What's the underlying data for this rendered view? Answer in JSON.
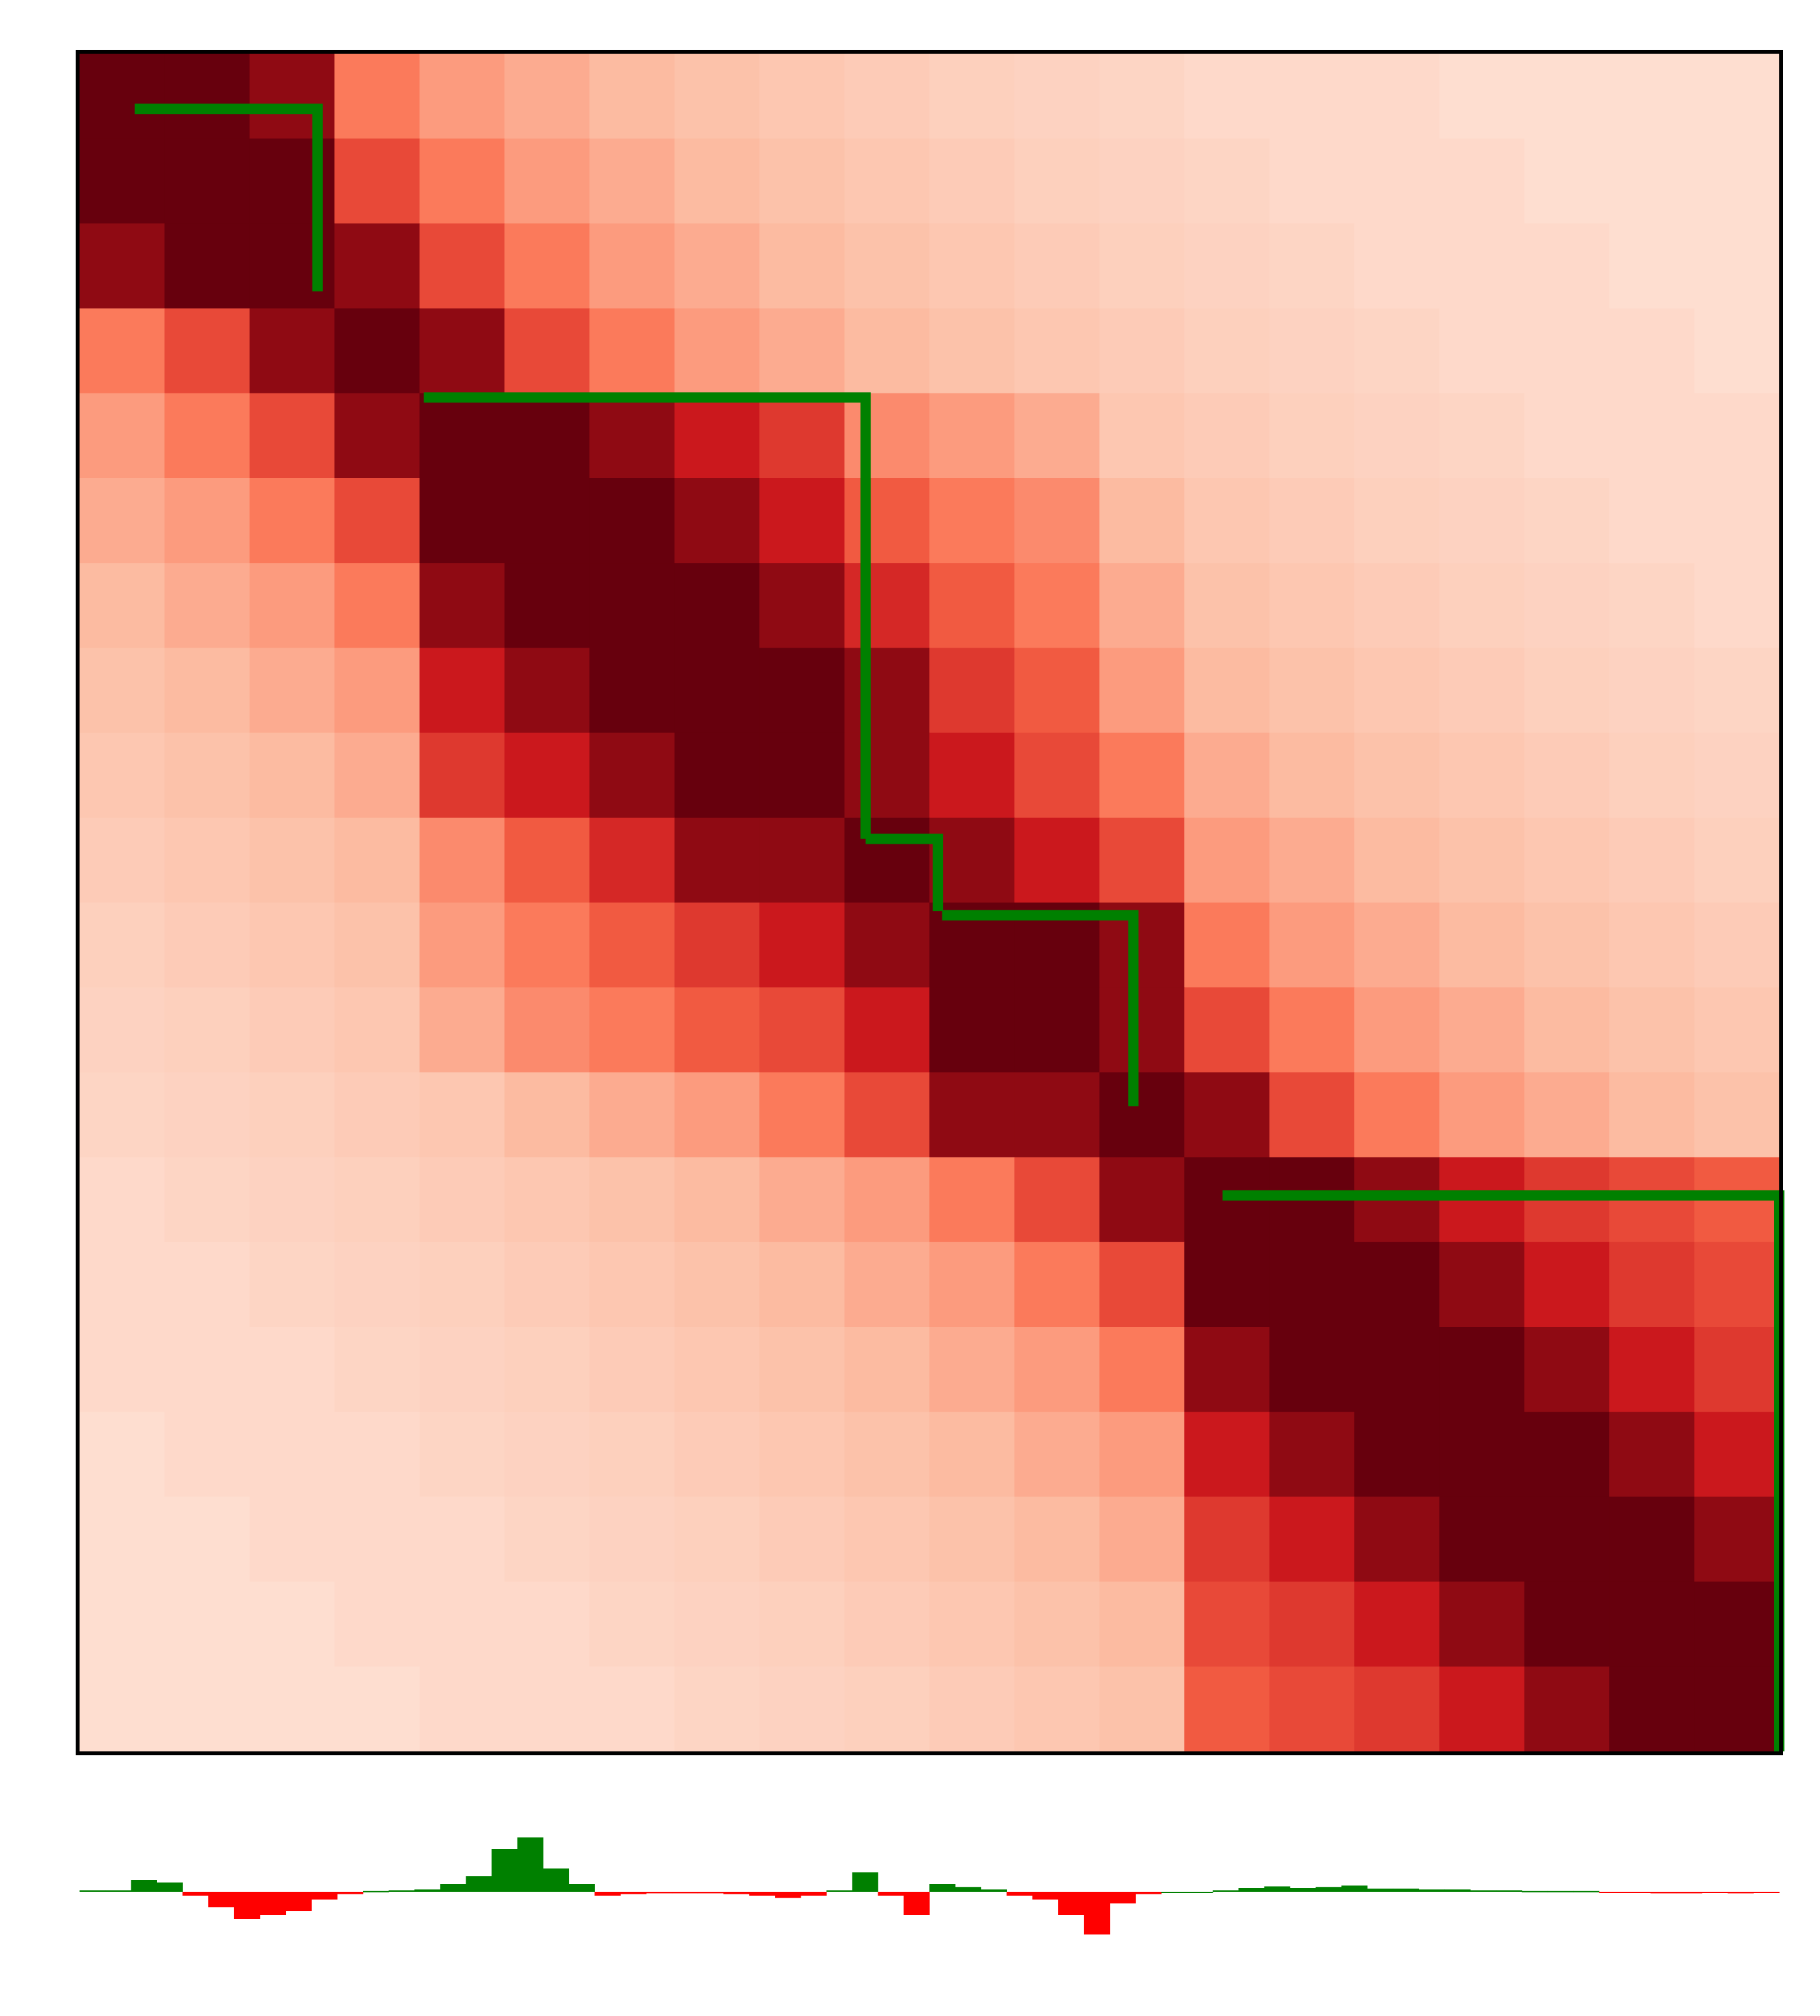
{
  "chart_data": {
    "type": "heatmap",
    "vmin": 0,
    "vmax": 1,
    "colormap": [
      "#fff5f0",
      "#fcbba1",
      "#fb6a4a",
      "#cb181d",
      "#67000d"
    ],
    "matrix": [
      [
        1,
        1,
        0.9,
        0.45,
        0.35,
        0.3,
        0.25,
        0.22,
        0.2,
        0.18,
        0.16,
        0.15,
        0.14,
        0.12,
        0.12,
        0.12,
        0.1,
        0.1,
        0.1,
        0.1
      ],
      [
        1,
        1,
        1,
        0.6,
        0.45,
        0.35,
        0.3,
        0.25,
        0.22,
        0.2,
        0.18,
        0.16,
        0.15,
        0.14,
        0.12,
        0.12,
        0.12,
        0.1,
        0.1,
        0.1
      ],
      [
        0.9,
        1,
        1,
        0.9,
        0.6,
        0.45,
        0.35,
        0.3,
        0.25,
        0.22,
        0.2,
        0.18,
        0.16,
        0.15,
        0.14,
        0.12,
        0.12,
        0.12,
        0.1,
        0.1
      ],
      [
        0.45,
        0.6,
        0.9,
        1,
        0.9,
        0.6,
        0.45,
        0.35,
        0.3,
        0.25,
        0.22,
        0.2,
        0.18,
        0.16,
        0.15,
        0.14,
        0.12,
        0.12,
        0.12,
        0.1
      ],
      [
        0.35,
        0.45,
        0.6,
        0.9,
        1,
        1,
        0.9,
        0.75,
        0.65,
        0.4,
        0.35,
        0.3,
        0.2,
        0.18,
        0.16,
        0.15,
        0.14,
        0.12,
        0.12,
        0.12
      ],
      [
        0.3,
        0.35,
        0.45,
        0.6,
        1,
        1,
        1,
        0.9,
        0.75,
        0.55,
        0.45,
        0.4,
        0.25,
        0.2,
        0.18,
        0.16,
        0.15,
        0.14,
        0.12,
        0.12
      ],
      [
        0.25,
        0.3,
        0.35,
        0.45,
        0.9,
        1,
        1,
        1,
        0.9,
        0.7,
        0.55,
        0.45,
        0.3,
        0.22,
        0.2,
        0.18,
        0.16,
        0.15,
        0.14,
        0.12
      ],
      [
        0.22,
        0.25,
        0.3,
        0.35,
        0.75,
        0.9,
        1,
        1,
        1,
        0.9,
        0.65,
        0.55,
        0.35,
        0.25,
        0.22,
        0.2,
        0.18,
        0.16,
        0.15,
        0.14
      ],
      [
        0.2,
        0.22,
        0.25,
        0.3,
        0.65,
        0.75,
        0.9,
        1,
        1,
        0.9,
        0.75,
        0.6,
        0.45,
        0.3,
        0.25,
        0.22,
        0.2,
        0.18,
        0.16,
        0.15
      ],
      [
        0.18,
        0.2,
        0.22,
        0.25,
        0.4,
        0.55,
        0.7,
        0.9,
        0.9,
        1,
        0.9,
        0.75,
        0.6,
        0.35,
        0.3,
        0.25,
        0.22,
        0.2,
        0.18,
        0.16
      ],
      [
        0.16,
        0.18,
        0.2,
        0.22,
        0.35,
        0.45,
        0.55,
        0.65,
        0.75,
        0.9,
        1,
        1,
        0.9,
        0.45,
        0.35,
        0.3,
        0.25,
        0.22,
        0.2,
        0.18
      ],
      [
        0.15,
        0.16,
        0.18,
        0.2,
        0.3,
        0.4,
        0.45,
        0.55,
        0.6,
        0.75,
        1,
        1,
        0.9,
        0.6,
        0.45,
        0.35,
        0.3,
        0.25,
        0.22,
        0.2
      ],
      [
        0.14,
        0.15,
        0.16,
        0.18,
        0.2,
        0.25,
        0.3,
        0.35,
        0.45,
        0.6,
        0.9,
        0.9,
        1,
        0.9,
        0.6,
        0.45,
        0.35,
        0.3,
        0.25,
        0.22
      ],
      [
        0.12,
        0.14,
        0.15,
        0.16,
        0.18,
        0.2,
        0.22,
        0.25,
        0.3,
        0.35,
        0.45,
        0.6,
        0.9,
        1,
        1,
        0.9,
        0.75,
        0.65,
        0.6,
        0.55
      ],
      [
        0.12,
        0.12,
        0.14,
        0.15,
        0.16,
        0.18,
        0.2,
        0.22,
        0.25,
        0.3,
        0.35,
        0.45,
        0.6,
        1,
        1,
        1,
        0.9,
        0.75,
        0.65,
        0.6
      ],
      [
        0.12,
        0.12,
        0.12,
        0.14,
        0.15,
        0.16,
        0.18,
        0.2,
        0.22,
        0.25,
        0.3,
        0.35,
        0.45,
        0.9,
        1,
        1,
        1,
        0.9,
        0.75,
        0.65
      ],
      [
        0.1,
        0.12,
        0.12,
        0.12,
        0.14,
        0.15,
        0.16,
        0.18,
        0.2,
        0.22,
        0.25,
        0.3,
        0.35,
        0.75,
        0.9,
        1,
        1,
        1,
        0.9,
        0.75
      ],
      [
        0.1,
        0.1,
        0.12,
        0.12,
        0.12,
        0.14,
        0.15,
        0.16,
        0.18,
        0.2,
        0.22,
        0.25,
        0.3,
        0.65,
        0.75,
        0.9,
        1,
        1,
        1,
        0.9
      ],
      [
        0.1,
        0.1,
        0.1,
        0.12,
        0.12,
        0.12,
        0.14,
        0.15,
        0.16,
        0.18,
        0.2,
        0.22,
        0.25,
        0.6,
        0.65,
        0.75,
        0.9,
        1,
        1,
        1
      ],
      [
        0.1,
        0.1,
        0.1,
        0.1,
        0.12,
        0.12,
        0.12,
        0.14,
        0.15,
        0.16,
        0.18,
        0.2,
        0.22,
        0.55,
        0.6,
        0.65,
        0.75,
        0.9,
        1,
        1
      ]
    ],
    "domain_color": "#008000",
    "domains": [
      {
        "start": 0.65,
        "end": 2.8
      },
      {
        "start": 4.05,
        "end": 9.25
      },
      {
        "start": 9.25,
        "end": 10.1
      },
      {
        "start": 10.15,
        "end": 12.4
      },
      {
        "start": 13.45,
        "end": 20
      }
    ],
    "track": {
      "type": "bar",
      "ylim": [
        -1,
        1
      ],
      "positive_color": "#008000",
      "negative_color": "#ff0000",
      "values": [
        0.02,
        0.02,
        0.15,
        0.12,
        -0.05,
        -0.2,
        -0.35,
        -0.3,
        -0.25,
        -0.1,
        -0.03,
        0.01,
        0.02,
        0.03,
        0.1,
        0.2,
        0.55,
        0.7,
        0.3,
        0.1,
        -0.05,
        -0.03,
        -0.02,
        -0.02,
        -0.02,
        -0.03,
        -0.05,
        -0.08,
        -0.05,
        0.02,
        0.25,
        -0.05,
        -0.3,
        0.1,
        0.06,
        0.03,
        -0.05,
        -0.1,
        -0.3,
        -0.55,
        -0.15,
        -0.03,
        0,
        0,
        0.02,
        0.05,
        0.07,
        0.05,
        0.06,
        0.08,
        0.04,
        0.04,
        0.03,
        0.03,
        0.02,
        0.02,
        0.01,
        0.01,
        0.01,
        -0.01,
        -0.01,
        -0.02,
        -0.02,
        -0.01,
        -0.02,
        -0.01
      ]
    }
  }
}
